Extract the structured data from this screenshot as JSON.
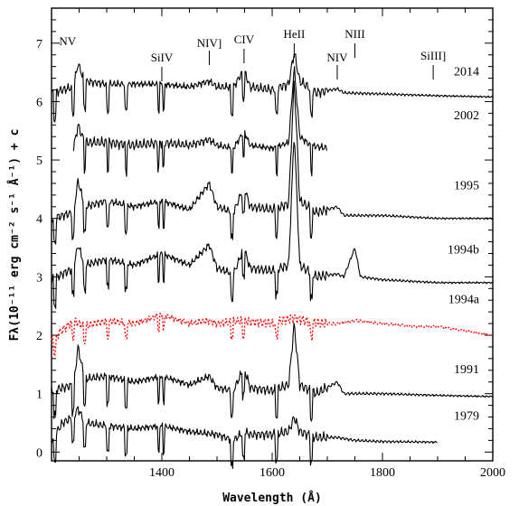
{
  "chart_data": {
    "type": "line",
    "title": "",
    "xlabel": "Wavelength (Å)",
    "ylabel": "Fλ(10⁻¹¹ erg cm⁻² s⁻¹ Å⁻¹) + c",
    "xlim": [
      1200,
      2000
    ],
    "ylim": [
      -0.15,
      7.6
    ],
    "xticks": [
      1400,
      1600,
      1800,
      2000
    ],
    "yticks": [
      0,
      1,
      2,
      3,
      4,
      5,
      6,
      7
    ],
    "grid": false,
    "line_annotations": [
      {
        "label": "NV",
        "x": 1240
      },
      {
        "label": "SiIV",
        "x": 1400
      },
      {
        "label": "NIV]",
        "x": 1486
      },
      {
        "label": "CIV",
        "x": 1549
      },
      {
        "label": "HeII",
        "x": 1640
      },
      {
        "label": "NIV",
        "x": 1718
      },
      {
        "label": "NIII",
        "x": 1750
      },
      {
        "label": "SiIII]",
        "x": 1892
      }
    ],
    "series": [
      {
        "name": "2014",
        "color": "#000000",
        "dash": "",
        "x_range": [
          1200,
          2000
        ],
        "x": [
          1200,
          1220,
          1240,
          1248,
          1260,
          1300,
          1350,
          1400,
          1450,
          1486,
          1500,
          1530,
          1549,
          1560,
          1600,
          1630,
          1640,
          1650,
          1680,
          1718,
          1730,
          1800,
          1900,
          2000
        ],
        "y": [
          6.15,
          6.2,
          6.25,
          6.65,
          6.35,
          6.3,
          6.3,
          6.3,
          6.25,
          6.35,
          6.25,
          6.25,
          6.55,
          6.25,
          6.2,
          6.3,
          6.85,
          6.35,
          6.15,
          6.22,
          6.15,
          6.13,
          6.1,
          6.08
        ]
      },
      {
        "name": "2002",
        "color": "#000000",
        "dash": "",
        "x_range": [
          1240,
          1700
        ],
        "x": [
          1240,
          1248,
          1260,
          1300,
          1350,
          1400,
          1450,
          1486,
          1500,
          1530,
          1549,
          1560,
          1600,
          1630,
          1640,
          1650,
          1670,
          1700
        ],
        "y": [
          5.2,
          5.6,
          5.3,
          5.3,
          5.25,
          5.3,
          5.25,
          5.35,
          5.25,
          5.2,
          5.5,
          5.25,
          5.2,
          5.3,
          6.6,
          5.4,
          5.25,
          5.2
        ]
      },
      {
        "name": "1995",
        "color": "#000000",
        "dash": "",
        "x_range": [
          1200,
          2000
        ],
        "x": [
          1200,
          1220,
          1240,
          1248,
          1260,
          1300,
          1350,
          1400,
          1450,
          1486,
          1500,
          1530,
          1549,
          1560,
          1600,
          1630,
          1640,
          1650,
          1680,
          1718,
          1730,
          1800,
          1900,
          2000
        ],
        "y": [
          4.0,
          4.05,
          4.1,
          4.65,
          4.2,
          4.3,
          4.2,
          4.3,
          4.15,
          4.6,
          4.2,
          4.1,
          4.55,
          4.2,
          4.15,
          4.25,
          6.4,
          4.3,
          4.1,
          4.2,
          4.05,
          4.05,
          4.0,
          4.0
        ]
      },
      {
        "name": "1994b",
        "color": "#000000",
        "dash": "",
        "x_range": [
          1200,
          2000
        ],
        "x": [
          1200,
          1220,
          1240,
          1248,
          1260,
          1300,
          1350,
          1400,
          1450,
          1486,
          1500,
          1530,
          1549,
          1560,
          1600,
          1630,
          1640,
          1650,
          1680,
          1718,
          1730,
          1750,
          1760,
          1800,
          1900,
          2000
        ],
        "y": [
          2.95,
          3.05,
          3.15,
          3.55,
          3.2,
          3.3,
          3.2,
          3.4,
          3.2,
          3.55,
          3.15,
          3.05,
          3.5,
          3.15,
          3.1,
          3.2,
          5.5,
          3.2,
          3.0,
          3.05,
          3.0,
          3.5,
          3.0,
          2.95,
          2.9,
          2.9
        ]
      },
      {
        "name": "1994a",
        "color": "#ff0000",
        "dash": "2,2",
        "x_range": [
          1200,
          2000
        ],
        "x": [
          1200,
          1220,
          1240,
          1260,
          1300,
          1350,
          1400,
          1450,
          1486,
          1500,
          1549,
          1600,
          1640,
          1680,
          1718,
          1750,
          1800,
          1860,
          1900,
          2000
        ],
        "y": [
          1.9,
          2.1,
          2.25,
          2.15,
          2.25,
          2.2,
          2.35,
          2.2,
          2.25,
          2.2,
          2.25,
          2.2,
          2.3,
          2.2,
          2.2,
          2.25,
          2.2,
          2.15,
          2.15,
          2.0
        ]
      },
      {
        "name": "1991",
        "color": "#000000",
        "dash": "",
        "x_range": [
          1200,
          2000
        ],
        "x": [
          1200,
          1220,
          1240,
          1248,
          1260,
          1300,
          1350,
          1400,
          1450,
          1486,
          1500,
          1530,
          1549,
          1560,
          1600,
          1630,
          1640,
          1650,
          1680,
          1718,
          1730,
          1800,
          1900,
          2000
        ],
        "y": [
          1.05,
          1.1,
          1.15,
          1.8,
          1.25,
          1.3,
          1.2,
          1.3,
          1.15,
          1.3,
          1.1,
          1.05,
          1.45,
          1.1,
          1.05,
          1.15,
          2.2,
          1.15,
          1.0,
          1.2,
          1.0,
          1.0,
          0.97,
          0.95
        ]
      },
      {
        "name": "1979",
        "color": "#000000",
        "dash": "",
        "x_range": [
          1200,
          1900
        ],
        "x": [
          1200,
          1220,
          1240,
          1248,
          1260,
          1300,
          1350,
          1400,
          1450,
          1500,
          1530,
          1549,
          1560,
          1600,
          1630,
          1640,
          1650,
          1680,
          1718,
          1750,
          1800,
          1900
        ],
        "y": [
          0.2,
          0.5,
          0.6,
          0.75,
          0.5,
          0.45,
          0.4,
          0.45,
          0.35,
          0.3,
          0.2,
          0.35,
          0.3,
          0.3,
          0.35,
          0.6,
          0.35,
          0.25,
          0.25,
          0.2,
          0.18,
          0.17
        ]
      }
    ]
  }
}
